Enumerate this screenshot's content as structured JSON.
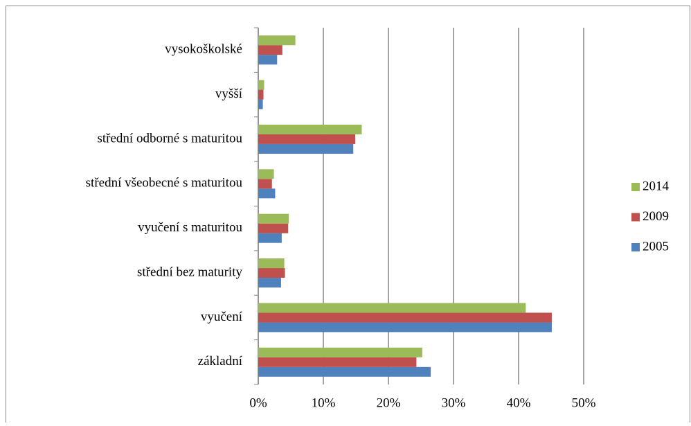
{
  "chart_data": {
    "type": "barh",
    "categories": [
      "vysokoškolské",
      "vyšší",
      "střední odborné s maturitou",
      "střední všeobecné s maturitou",
      "vyučení s maturitou",
      "střední bez maturity",
      "vyučení",
      "základní"
    ],
    "series": [
      {
        "name": "2005",
        "color": "#4f81bd",
        "values": [
          2.9,
          0.7,
          14.6,
          2.6,
          3.6,
          3.5,
          45.1,
          26.5
        ]
      },
      {
        "name": "2009",
        "color": "#c0504d",
        "values": [
          3.7,
          0.8,
          14.9,
          2.1,
          4.6,
          4.1,
          45.1,
          24.3
        ]
      },
      {
        "name": "2014",
        "color": "#9bbb59",
        "values": [
          5.7,
          0.9,
          15.9,
          2.4,
          4.7,
          4.0,
          41.1,
          25.2
        ]
      }
    ],
    "xlim": [
      0,
      50
    ],
    "xticks": [
      {
        "value": 0,
        "label": "0%"
      },
      {
        "value": 10,
        "label": "10%"
      },
      {
        "value": 20,
        "label": "20%"
      },
      {
        "value": 30,
        "label": "30%"
      },
      {
        "value": 40,
        "label": "40%"
      },
      {
        "value": 50,
        "label": "50%"
      }
    ],
    "grid": true,
    "legend": "right"
  }
}
